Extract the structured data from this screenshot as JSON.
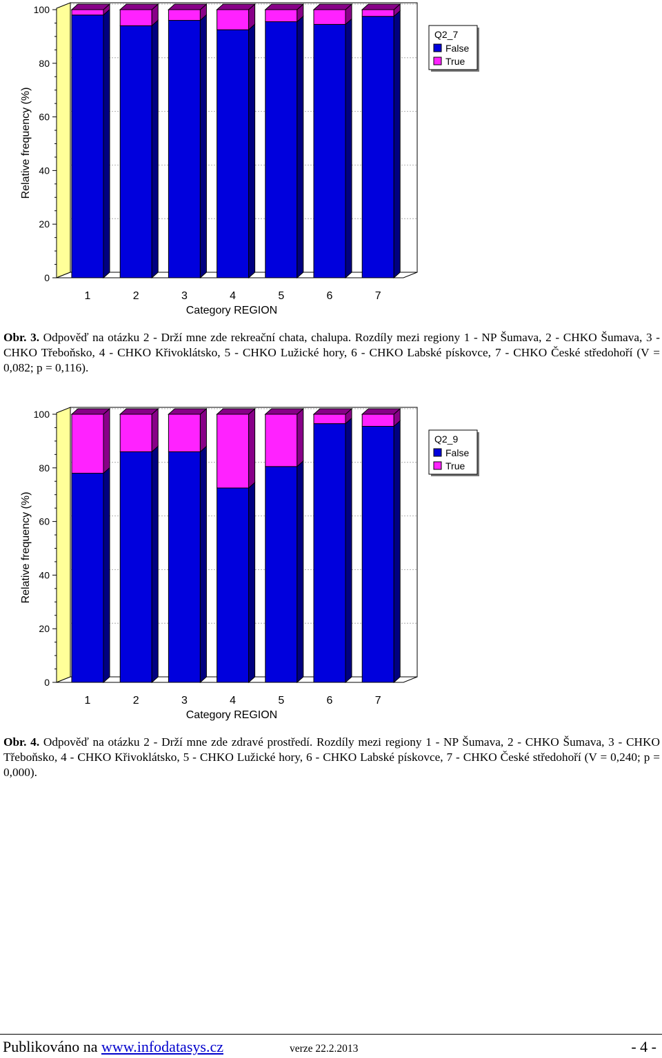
{
  "colors": {
    "false_face": "#0000dd",
    "false_side": "#000080",
    "true_face": "#ff22ff",
    "true_side": "#880088",
    "wall": "#ffff99"
  },
  "chart_data": [
    {
      "type": "bar",
      "stacked": true,
      "legend_title": "Q2_7",
      "legend_position": "top-right",
      "xlabel": "Category REGION",
      "ylabel": "Relative frequency (%)",
      "ylim": [
        0,
        100
      ],
      "yticks": [
        0,
        20,
        40,
        60,
        80,
        100
      ],
      "categories": [
        "1",
        "2",
        "3",
        "4",
        "5",
        "6",
        "7"
      ],
      "series": [
        {
          "name": "False",
          "values": [
            98,
            94,
            96,
            92.5,
            95.5,
            94.5,
            97.5
          ]
        },
        {
          "name": "True",
          "values": [
            2,
            6,
            4,
            7.5,
            4.5,
            5.5,
            2.5
          ]
        }
      ]
    },
    {
      "type": "bar",
      "stacked": true,
      "legend_title": "Q2_9",
      "legend_position": "top-right",
      "xlabel": "Category REGION",
      "ylabel": "Relative frequency (%)",
      "ylim": [
        0,
        100
      ],
      "yticks": [
        0,
        20,
        40,
        60,
        80,
        100
      ],
      "categories": [
        "1",
        "2",
        "3",
        "4",
        "5",
        "6",
        "7"
      ],
      "series": [
        {
          "name": "False",
          "values": [
            78,
            86,
            86,
            72.5,
            80.5,
            96.5,
            95.5
          ]
        },
        {
          "name": "True",
          "values": [
            22,
            14,
            14,
            27.5,
            19.5,
            3.5,
            4.5
          ]
        }
      ]
    }
  ],
  "captions": [
    {
      "label": "Obr. 3.",
      "text": " Odpověď na otázku 2 - Drží mne zde rekreační chata, chalupa. Rozdíly mezi regiony 1 - NP Šumava, 2 - CHKO Šumava, 3 - CHKO Třeboňsko, 4 - CHKO Křivoklátsko, 5 - CHKO Lužické hory, 6 - CHKO Labské pískovce, 7 - CHKO České středohoří (V = 0,082; p = 0,116)."
    },
    {
      "label": "Obr. 4.",
      "text": " Odpověď na otázku 2 - Drží mne zde zdravé prostředí. Rozdíly mezi regiony 1 - NP Šumava, 2 - CHKO Šumava, 3 - CHKO Třeboňsko, 4 - CHKO Křivoklátsko, 5 - CHKO Lužické hory, 6 - CHKO Labské pískovce, 7 - CHKO České středohoří (V = 0,240; p = 0,000)."
    }
  ],
  "footer": {
    "published_prefix": "Publikováno na ",
    "link_text": "www.infodatasys.cz",
    "version": "verze 22.2.2013",
    "page": "- 4 -"
  }
}
